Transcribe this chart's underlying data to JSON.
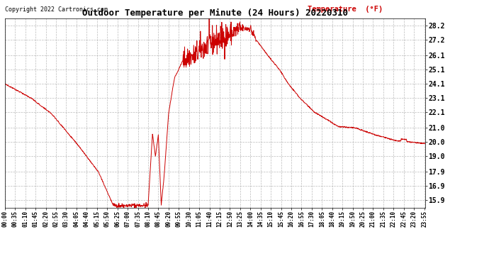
{
  "title": "Outdoor Temperature per Minute (24 Hours) 20220310",
  "copyright_text": "Copyright 2022 Cartronics.com",
  "legend_label": "Temperature  (°F)",
  "background_color": "#ffffff",
  "grid_color": "#aaaaaa",
  "line_color": "#cc0000",
  "title_color": "#000000",
  "copyright_color": "#000000",
  "legend_color": "#cc0000",
  "y_ticks": [
    15.9,
    16.9,
    17.9,
    19.0,
    20.0,
    21.0,
    22.1,
    23.1,
    24.1,
    25.1,
    26.1,
    27.2,
    28.2
  ],
  "ylim": [
    15.4,
    28.7
  ],
  "figsize": [
    6.9,
    3.75
  ],
  "dpi": 100
}
